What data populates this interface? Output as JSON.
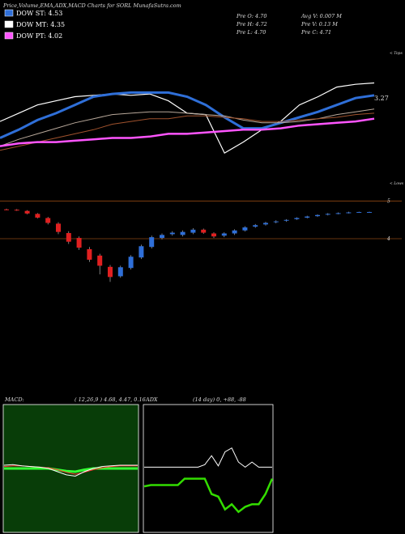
{
  "header": {
    "title": "Price,Volume,EMA,ADX,MACD Charts for SORL MunafaSutra.com"
  },
  "legend": [
    {
      "label": "DOW ST: 4.53",
      "color": "#2f6fd8"
    },
    {
      "label": "DOW MT: 4.35",
      "color": "#ffffff"
    },
    {
      "label": "DOW PT: 4.02",
      "color": "#ff55ff"
    }
  ],
  "stats": [
    "Pre  O: 4.70",
    "Avg  V: 0.007 M",
    "Pre  H: 4.72",
    "Pre  V: 0.13 M",
    "Pre  L: 4.70",
    "Pre  C: 4.71"
  ],
  "chart_data": [
    {
      "type": "line",
      "annotations": [
        "3.27",
        "< Tops",
        "< Lows"
      ],
      "ylim": [
        0,
        100
      ],
      "series": [
        {
          "name": "price",
          "color": "#ffffff",
          "values": [
            47,
            53,
            59,
            62,
            65,
            66,
            67,
            66,
            67,
            62,
            53,
            52,
            24,
            32,
            41,
            47,
            59,
            65,
            72,
            74,
            75
          ]
        },
        {
          "name": "ema-short",
          "color": "#2f6fd8",
          "values": [
            35,
            41,
            48,
            53,
            59,
            65,
            67,
            68,
            68,
            68,
            65,
            59,
            50,
            42,
            42,
            46,
            50,
            54,
            59,
            64,
            66
          ]
        },
        {
          "name": "ema-mid",
          "color": "#b8a89a",
          "values": [
            29,
            34,
            38,
            42,
            46,
            49,
            52,
            53,
            54,
            54,
            53,
            52,
            51,
            48,
            46,
            46,
            47,
            49,
            52,
            54,
            56
          ]
        },
        {
          "name": "ema-long",
          "color": "#a0522d",
          "values": [
            26,
            29,
            32,
            35,
            38,
            41,
            45,
            47,
            49,
            49,
            51,
            51,
            50,
            49,
            47,
            47,
            48,
            49,
            50,
            52,
            53
          ]
        },
        {
          "name": "trend",
          "color": "#ff55ff",
          "values": [
            29,
            31,
            32,
            32,
            33,
            34,
            35,
            35,
            36,
            38,
            38,
            39,
            40,
            41,
            41,
            42,
            44,
            45,
            46,
            47,
            49
          ]
        }
      ]
    },
    {
      "type": "candlestick",
      "ylim": [
        2.6,
        5.4
      ],
      "yticks": [
        4,
        5
      ],
      "up_color": "#2f6fd8",
      "down_color": "#e02020",
      "open": [
        4.78,
        4.77,
        4.74,
        4.66,
        4.55,
        4.4,
        4.15,
        4.02,
        3.72,
        3.55,
        3.25,
        3.0,
        3.22,
        3.5,
        3.78,
        4.02,
        4.12,
        4.1,
        4.16,
        4.24,
        4.14,
        4.08,
        4.14,
        4.22,
        4.32,
        4.38,
        4.44,
        4.48,
        4.52,
        4.56,
        4.6,
        4.64,
        4.67,
        4.69,
        4.7,
        4.7
      ],
      "close": [
        4.77,
        4.75,
        4.67,
        4.56,
        4.42,
        4.18,
        3.92,
        3.76,
        3.44,
        3.28,
        2.98,
        3.24,
        3.52,
        3.8,
        4.04,
        4.1,
        4.16,
        4.18,
        4.24,
        4.16,
        4.06,
        4.14,
        4.22,
        4.3,
        4.36,
        4.42,
        4.46,
        4.5,
        4.55,
        4.59,
        4.63,
        4.66,
        4.68,
        4.7,
        4.71,
        4.71
      ],
      "high": [
        4.8,
        4.79,
        4.76,
        4.68,
        4.58,
        4.44,
        4.2,
        4.06,
        3.78,
        3.6,
        3.3,
        3.28,
        3.56,
        3.84,
        4.08,
        4.14,
        4.2,
        4.22,
        4.28,
        4.27,
        4.17,
        4.17,
        4.25,
        4.33,
        4.39,
        4.45,
        4.49,
        4.52,
        4.57,
        4.61,
        4.65,
        4.68,
        4.7,
        4.72,
        4.72,
        4.72
      ],
      "low": [
        4.76,
        4.74,
        4.65,
        4.54,
        4.38,
        4.12,
        3.86,
        3.7,
        3.38,
        3.05,
        2.85,
        2.96,
        3.18,
        3.46,
        3.74,
        3.98,
        4.08,
        4.06,
        4.12,
        4.13,
        4.02,
        4.04,
        4.1,
        4.19,
        4.29,
        4.35,
        4.41,
        4.45,
        4.5,
        4.54,
        4.58,
        4.62,
        4.65,
        4.67,
        4.69,
        4.7
      ]
    },
    {
      "type": "line",
      "title": "MACD:",
      "subtitle": "( 12,26,9 ) 4.68, 4.47, 0.16",
      "ylim": [
        -1,
        1
      ],
      "series": [
        {
          "name": "histogram",
          "color": "#33ff33",
          "values": [
            0,
            0,
            0,
            0,
            0,
            0,
            -0.02,
            -0.04,
            -0.05,
            -0.02,
            0,
            0,
            0,
            0,
            0,
            0
          ]
        },
        {
          "name": "signal",
          "color": "#ff3333",
          "values": [
            0.03,
            0.04,
            0.04,
            0.03,
            0.02,
            0.01,
            -0.02,
            -0.06,
            -0.09,
            -0.06,
            -0.02,
            0.01,
            0.03,
            0.04,
            0.04,
            0.04
          ]
        },
        {
          "name": "macd",
          "color": "#ffffff",
          "values": [
            0.05,
            0.06,
            0.04,
            0.03,
            0.02,
            0.0,
            -0.05,
            -0.1,
            -0.12,
            -0.05,
            0.0,
            0.03,
            0.04,
            0.05,
            0.05,
            0.05
          ]
        }
      ]
    },
    {
      "type": "line",
      "title": "ADX",
      "subtitle": "(14 day) 0, +88, -88",
      "ylim": [
        0,
        100
      ],
      "series": [
        {
          "name": "adx",
          "color": "#ffffff",
          "values": [
            51,
            51,
            51,
            51,
            51,
            51,
            51,
            51,
            51,
            53,
            60,
            52,
            63,
            66,
            55,
            51,
            55,
            51,
            51,
            51
          ]
        },
        {
          "name": "di",
          "color": "#33dd00",
          "values": [
            36,
            37,
            37,
            37,
            37,
            37,
            42,
            42,
            42,
            42,
            30,
            28,
            18,
            22,
            16,
            20,
            22,
            22,
            30,
            42
          ]
        }
      ]
    }
  ]
}
